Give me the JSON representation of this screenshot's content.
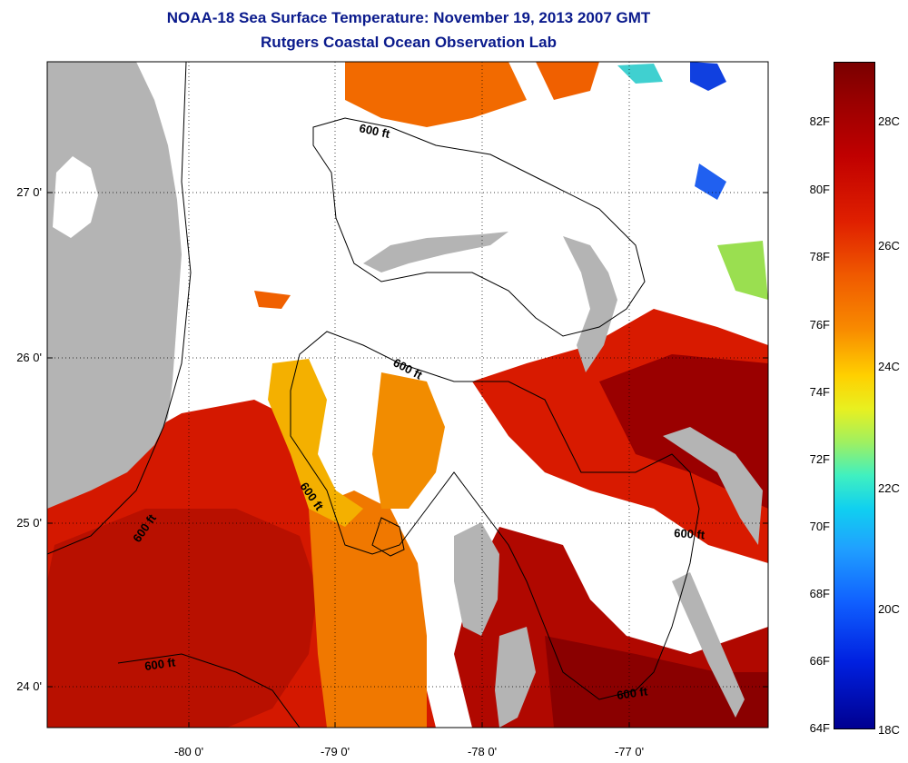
{
  "title": "NOAA-18 Sea Surface Temperature:  November 19, 2013 2007 GMT",
  "subtitle": "Rutgers Coastal Ocean Observation Lab",
  "y_ticks": [
    {
      "label": "27 0'",
      "lat": 27.0
    },
    {
      "label": "26 0'",
      "lat": 26.0
    },
    {
      "label": "25 0'",
      "lat": 25.0
    },
    {
      "label": "24 0'",
      "lat": 24.0
    }
  ],
  "x_ticks": [
    {
      "label": "-80 0'",
      "lon": -80.0
    },
    {
      "label": "-79 0'",
      "lon": -79.0
    },
    {
      "label": "-78 0'",
      "lon": -78.0
    },
    {
      "label": "-77 0'",
      "lon": -77.0
    }
  ],
  "colorbar": {
    "fahrenheit": [
      "82F",
      "80F",
      "78F",
      "76F",
      "74F",
      "72F",
      "70F",
      "68F",
      "66F",
      "64F"
    ],
    "celsius": [
      "28C",
      "26C",
      "24C",
      "22C",
      "20C",
      "18C"
    ]
  },
  "contour_labels": [
    {
      "text": "600 ft"
    },
    {
      "text": "600 ft"
    },
    {
      "text": "600 ft"
    },
    {
      "text": "600 ft"
    },
    {
      "text": "600 ft"
    },
    {
      "text": "600 ft"
    },
    {
      "text": "600 ft"
    }
  ],
  "colors": {
    "land": "#b4b4b4",
    "cloud": "#ffffff",
    "warm_dark": "#8a0000",
    "warm": "#d81a00",
    "orange": "#f07a00",
    "yellow": "#f8c800",
    "title": "#0a1a8c"
  }
}
